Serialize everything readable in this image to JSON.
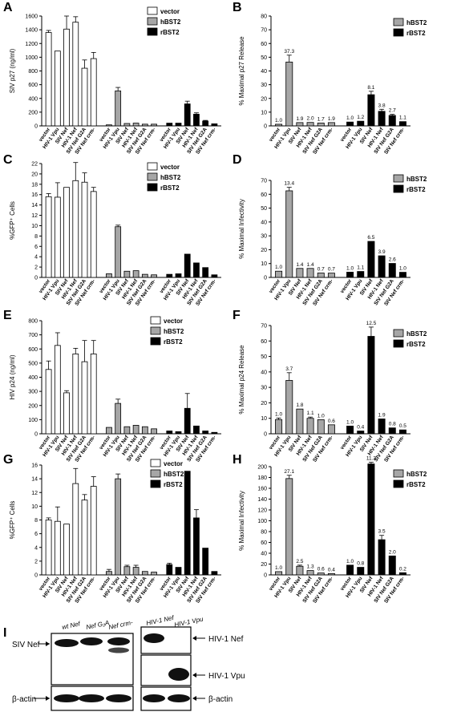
{
  "chart_data": [
    {
      "panel": "A",
      "type": "bar",
      "ylabel": "SIV p27 (ng/ml)",
      "ylim": [
        0,
        1600
      ],
      "yticks": [
        0,
        200,
        400,
        600,
        800,
        1000,
        1200,
        1400,
        1600
      ],
      "categories": [
        "vector",
        "HIV-1 Vpu",
        "SIV Nef",
        "HIV-1 Nef",
        "SIV Nef G2A",
        "SIV Nef crm-"
      ],
      "legend": [
        "vector",
        "hBST2",
        "rBST2"
      ],
      "series": [
        {
          "name": "vector",
          "values": [
            1360,
            1090,
            1410,
            1510,
            840,
            980
          ],
          "errors": [
            30,
            0,
            190,
            80,
            120,
            90
          ]
        },
        {
          "name": "hBST2",
          "values": [
            15,
            510,
            35,
            40,
            25,
            25
          ],
          "errors": [
            0,
            50,
            0,
            0,
            0,
            0
          ]
        },
        {
          "name": "rBST2",
          "values": [
            40,
            40,
            320,
            170,
            70,
            30
          ],
          "errors": [
            0,
            0,
            40,
            20,
            10,
            0
          ]
        }
      ]
    },
    {
      "panel": "B",
      "type": "bar",
      "ylabel": "% Maximal p27 Release",
      "ylim": [
        0,
        80
      ],
      "yticks": [
        0,
        10,
        20,
        30,
        40,
        50,
        60,
        70,
        80
      ],
      "categories": [
        "vector",
        "HIV-1 Vpu",
        "SIV Nef",
        "HIV-1 Nef",
        "SIV Nef G2A",
        "SIV Nef crm-"
      ],
      "legend": [
        "hBST2",
        "rBST2"
      ],
      "series": [
        {
          "name": "hBST2",
          "values": [
            1.2,
            46.5,
            2.4,
            2.5,
            2.1,
            2.4
          ],
          "labels": [
            "1.0",
            "37.3",
            "1.9",
            "2.0",
            "1.7",
            "1.9"
          ],
          "errors": [
            0,
            5,
            0,
            0,
            0,
            0
          ]
        },
        {
          "name": "rBST2",
          "values": [
            2.8,
            3.4,
            22.7,
            10.6,
            7.6,
            3.1
          ],
          "labels": [
            "1.0",
            "1.2",
            "8.1",
            "3.8",
            "2.7",
            "1.1"
          ],
          "errors": [
            0,
            0,
            2.5,
            1.5,
            0.8,
            0
          ]
        }
      ]
    },
    {
      "panel": "C",
      "type": "bar",
      "ylabel": "%GFP⁺ Cells",
      "ylim": [
        0,
        22
      ],
      "yticks": [
        0,
        2,
        4,
        6,
        8,
        10,
        12,
        14,
        16,
        18,
        20,
        22
      ],
      "categories": [
        "vector",
        "HIV-1 Vpu",
        "SIV Nef",
        "HIV-1 Nef",
        "SIV Nef G2A",
        "SIV Nef crm-"
      ],
      "legend": [
        "vector",
        "hBST2",
        "rBST2"
      ],
      "series": [
        {
          "name": "vector",
          "values": [
            15.6,
            15.5,
            17.4,
            18.7,
            18.4,
            16.6
          ],
          "errors": [
            0.6,
            2.8,
            0,
            3.5,
            1.8,
            0.8
          ]
        },
        {
          "name": "hBST2",
          "values": [
            0.7,
            9.8,
            1.2,
            1.3,
            0.6,
            0.5
          ],
          "errors": [
            0,
            0.3,
            0,
            0,
            0,
            0
          ]
        },
        {
          "name": "rBST2",
          "values": [
            0.6,
            0.7,
            4.5,
            2.8,
            1.9,
            0.5
          ],
          "errors": [
            0,
            0,
            0,
            0,
            0,
            0
          ]
        }
      ]
    },
    {
      "panel": "D",
      "type": "bar",
      "ylabel": "% Maximal Infectivity",
      "ylim": [
        0,
        70
      ],
      "yticks": [
        0,
        10,
        20,
        30,
        40,
        50,
        60,
        70
      ],
      "categories": [
        "vector",
        "HIV-1 Vpu",
        "SIV Nef",
        "HIV-1 Nef",
        "SIV Nef G2A",
        "SIV Nef crm-"
      ],
      "legend": [
        "hBST2",
        "rBST2"
      ],
      "series": [
        {
          "name": "hBST2",
          "values": [
            4.5,
            62.5,
            6.5,
            6.5,
            3.2,
            3.1
          ],
          "labels": [
            "1.0",
            "13.4",
            "1.4",
            "1.4",
            "0.7",
            "0.7"
          ],
          "errors": [
            0,
            2.5,
            0,
            0,
            0,
            0
          ]
        },
        {
          "name": "rBST2",
          "values": [
            3.8,
            4.3,
            26,
            15.6,
            10.1,
            3.7
          ],
          "labels": [
            "1.0",
            "1.1",
            "6.5",
            "3.9",
            "2.6",
            "1.0"
          ],
          "errors": [
            0,
            0,
            0,
            0,
            0,
            0
          ]
        }
      ]
    },
    {
      "panel": "E",
      "type": "bar",
      "ylabel": "HIV p24 (ng/ml)",
      "ylim": [
        0,
        800
      ],
      "yticks": [
        0,
        100,
        200,
        300,
        400,
        500,
        600,
        700,
        800
      ],
      "categories": [
        "vector",
        "HIV-1 Vpu",
        "SIV Nef",
        "HIV-1 Nef",
        "SIV Nef G2A",
        "SIV Nef crm-"
      ],
      "legend": [
        "vector",
        "hBST2",
        "rBST2"
      ],
      "series": [
        {
          "name": "vector",
          "values": [
            455,
            625,
            290,
            565,
            510,
            565
          ],
          "errors": [
            60,
            90,
            15,
            40,
            150,
            95
          ]
        },
        {
          "name": "hBST2",
          "values": [
            45,
            215,
            50,
            60,
            50,
            35
          ],
          "errors": [
            0,
            30,
            0,
            0,
            0,
            0
          ]
        },
        {
          "name": "rBST2",
          "values": [
            20,
            15,
            180,
            55,
            20,
            10
          ],
          "errors": [
            0,
            0,
            105,
            0,
            0,
            0
          ]
        }
      ]
    },
    {
      "panel": "F",
      "type": "bar",
      "ylabel": "% Maximal p24 Release",
      "ylim": [
        0,
        70
      ],
      "yticks": [
        0,
        10,
        20,
        30,
        40,
        50,
        60,
        70
      ],
      "categories": [
        "vector",
        "HIV-1 Vpu",
        "SIV Nef",
        "HIV-1 Nef",
        "SIV Nef G2A",
        "SIV Nef crm-"
      ],
      "legend": [
        "hBST2",
        "rBST2"
      ],
      "series": [
        {
          "name": "hBST2",
          "values": [
            9.2,
            34.5,
            16,
            10,
            9.1,
            5.8
          ],
          "labels": [
            "1.0",
            "3.7",
            "1.8",
            "1.1",
            "1.0",
            "0.6"
          ],
          "errors": [
            1,
            5,
            0,
            0.8,
            0,
            0
          ]
        },
        {
          "name": "rBST2",
          "values": [
            5,
            1.8,
            63,
            9.6,
            3.8,
            2.5
          ],
          "labels": [
            "1.0",
            "0.4",
            "12.5",
            "1.9",
            "0.8",
            "0.5"
          ],
          "errors": [
            0,
            0,
            6,
            0,
            0,
            0
          ]
        }
      ]
    },
    {
      "panel": "G",
      "type": "bar",
      "ylabel": "%GFP⁺ Cells",
      "ylim": [
        0,
        16
      ],
      "yticks": [
        0,
        2,
        4,
        6,
        8,
        10,
        12,
        14,
        16
      ],
      "categories": [
        "vector",
        "HIV-1 Vpu",
        "SIV Nef",
        "HIV-1 Nef",
        "SIV Nef G2A",
        "SIV Nef crm-"
      ],
      "legend": [
        "vector",
        "hBST2",
        "rBST2"
      ],
      "series": [
        {
          "name": "vector",
          "values": [
            8.0,
            7.8,
            7.4,
            13.3,
            10.9,
            12.9
          ],
          "errors": [
            0.3,
            2.1,
            0,
            2.2,
            0.8,
            1.4
          ]
        },
        {
          "name": "hBST2",
          "values": [
            0.5,
            14.0,
            1.2,
            1.1,
            0.5,
            0.4
          ],
          "errors": [
            0.3,
            0.7,
            0.2,
            0.3,
            0,
            0
          ]
        },
        {
          "name": "rBST2",
          "values": [
            1.5,
            1.1,
            15.1,
            8.3,
            3.9,
            0.5
          ],
          "errors": [
            0.2,
            0,
            0,
            1.2,
            0,
            0
          ]
        }
      ]
    },
    {
      "panel": "H",
      "type": "bar",
      "ylabel": "% Maximal Infectivity",
      "ylim": [
        0,
        200
      ],
      "yticks": [
        0,
        20,
        40,
        60,
        80,
        100,
        120,
        140,
        160,
        180,
        200
      ],
      "categories": [
        "vector",
        "HIV-1 Vpu",
        "SIV Nef",
        "HIV-1 Nef",
        "SIV Nef G2A",
        "SIV Nef crm-"
      ],
      "legend": [
        "hBST2",
        "rBST2"
      ],
      "series": [
        {
          "name": "hBST2",
          "values": [
            6,
            178,
            16,
            8,
            3.5,
            2.5
          ],
          "labels": [
            "1.0",
            "27.1",
            "2.5",
            "1.3",
            "0.6",
            "0.4"
          ],
          "errors": [
            0,
            6,
            2,
            0,
            0,
            0
          ]
        },
        {
          "name": "rBST2",
          "values": [
            18,
            14,
            205,
            65,
            35,
            4
          ],
          "labels": [
            "1.0",
            "0.8",
            "11.3",
            "3.5",
            "2.0",
            "0.2"
          ],
          "errors": [
            0,
            0,
            3,
            8,
            0,
            0
          ]
        }
      ]
    }
  ],
  "blot": {
    "panel": "I",
    "left_lanes": [
      "wt Nef",
      "Nef G₂A",
      "Nef crm-"
    ],
    "right_lanes": [
      "HIV-1 Nef",
      "HIV-1 Vpu"
    ],
    "left_row_labels": [
      "SIV Nef",
      "β-actin"
    ],
    "right_row_labels": [
      "HIV-1 Nef",
      "HIV-1 Vpu",
      "β-actin"
    ]
  }
}
